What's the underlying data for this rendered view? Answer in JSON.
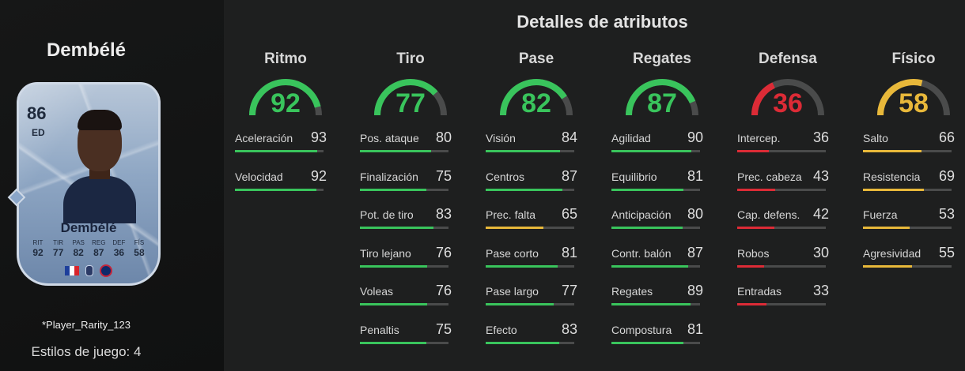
{
  "player": {
    "name": "Dembélé",
    "rating": "86",
    "position": "ED",
    "card_name": "Dembélé",
    "card_stats": [
      {
        "label": "RIT",
        "value": "92"
      },
      {
        "label": "TIR",
        "value": "77"
      },
      {
        "label": "PAS",
        "value": "82"
      },
      {
        "label": "REG",
        "value": "87"
      },
      {
        "label": "DEF",
        "value": "36"
      },
      {
        "label": "FÍS",
        "value": "58"
      }
    ],
    "rarity": "*Player_Rarity_123",
    "play_styles": "Estilos de juego: 4"
  },
  "details": {
    "title": "Detalles de atributos",
    "colors": {
      "green": "#39c45c",
      "yellow": "#e8b83a",
      "red": "#dc2b36",
      "track": "#4a4b4b"
    },
    "categories": [
      {
        "name": "Ritmo",
        "value": 92,
        "color": "green",
        "attrs": [
          {
            "label": "Aceleración",
            "value": 93
          },
          {
            "label": "Velocidad",
            "value": 92
          }
        ]
      },
      {
        "name": "Tiro",
        "value": 77,
        "color": "green",
        "attrs": [
          {
            "label": "Pos. ataque",
            "value": 80
          },
          {
            "label": "Finalización",
            "value": 75
          },
          {
            "label": "Pot. de tiro",
            "value": 83
          },
          {
            "label": "Tiro lejano",
            "value": 76
          },
          {
            "label": "Voleas",
            "value": 76
          },
          {
            "label": "Penaltis",
            "value": 75
          }
        ]
      },
      {
        "name": "Pase",
        "value": 82,
        "color": "green",
        "attrs": [
          {
            "label": "Visión",
            "value": 84
          },
          {
            "label": "Centros",
            "value": 87
          },
          {
            "label": "Prec. falta",
            "value": 65
          },
          {
            "label": "Pase corto",
            "value": 81
          },
          {
            "label": "Pase largo",
            "value": 77
          },
          {
            "label": "Efecto",
            "value": 83
          }
        ]
      },
      {
        "name": "Regates",
        "value": 87,
        "color": "green",
        "attrs": [
          {
            "label": "Agilidad",
            "value": 90
          },
          {
            "label": "Equilibrio",
            "value": 81
          },
          {
            "label": "Anticipación",
            "value": 80
          },
          {
            "label": "Contr. balón",
            "value": 87
          },
          {
            "label": "Regates",
            "value": 89
          },
          {
            "label": "Compostura",
            "value": 81
          }
        ]
      },
      {
        "name": "Defensa",
        "value": 36,
        "color": "red",
        "attrs": [
          {
            "label": "Intercep.",
            "value": 36
          },
          {
            "label": "Prec. cabeza",
            "value": 43
          },
          {
            "label": "Cap. defens.",
            "value": 42
          },
          {
            "label": "Robos",
            "value": 30
          },
          {
            "label": "Entradas",
            "value": 33
          }
        ]
      },
      {
        "name": "Físico",
        "value": 58,
        "color": "yellow",
        "attrs": [
          {
            "label": "Salto",
            "value": 66
          },
          {
            "label": "Resistencia",
            "value": 69
          },
          {
            "label": "Fuerza",
            "value": 53
          },
          {
            "label": "Agresividad",
            "value": 55
          }
        ]
      }
    ]
  }
}
